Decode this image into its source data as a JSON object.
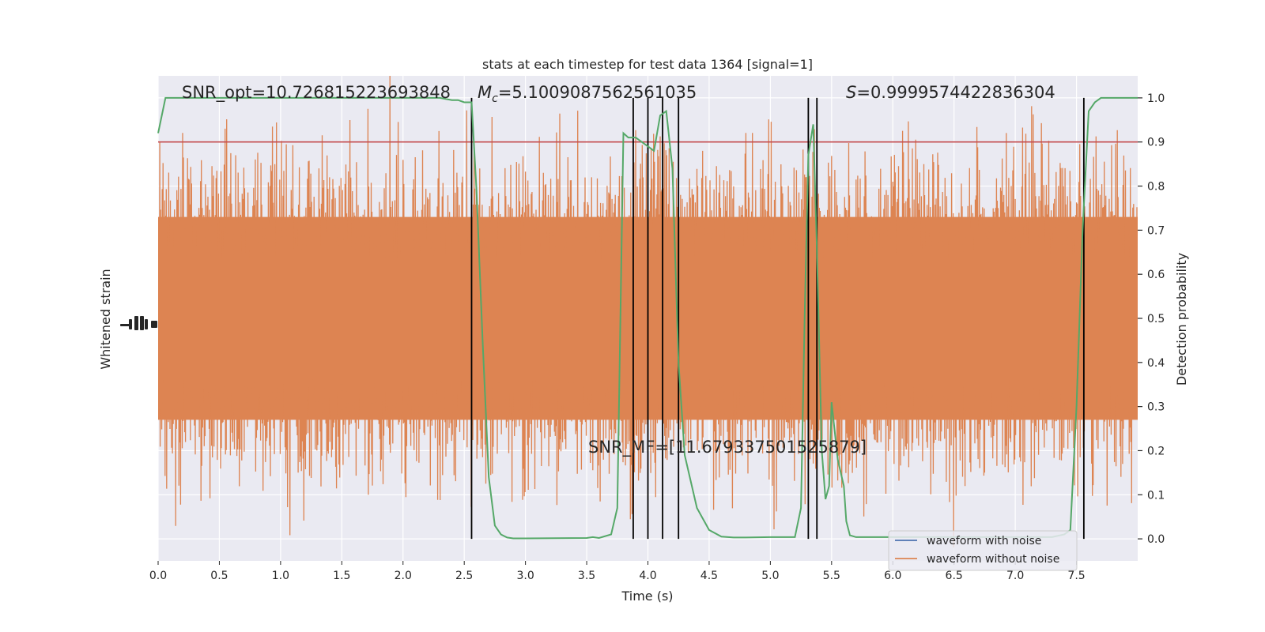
{
  "chart_data": {
    "type": "line",
    "title": "stats at each timestep for test data 1364 [signal=1]",
    "xlabel": "Time (s)",
    "ylabel_left": "Whitened strain",
    "ylabel_right": "Detection probability",
    "xlim": [
      0.0,
      8.0
    ],
    "ylim_right": [
      -0.05,
      1.05
    ],
    "x_ticks": [
      "0.0",
      "0.5",
      "1.0",
      "1.5",
      "2.0",
      "2.5",
      "3.0",
      "3.5",
      "4.0",
      "4.5",
      "5.0",
      "5.5",
      "6.0",
      "6.5",
      "7.0",
      "7.5"
    ],
    "x_tick_values": [
      0.0,
      0.5,
      1.0,
      1.5,
      2.0,
      2.5,
      3.0,
      3.5,
      4.0,
      4.5,
      5.0,
      5.5,
      6.0,
      6.5,
      7.0,
      7.5
    ],
    "y_ticks_right": [
      "0.0",
      "0.1",
      "0.2",
      "0.3",
      "0.4",
      "0.5",
      "0.6",
      "0.7",
      "0.8",
      "0.9",
      "1.0"
    ],
    "y_tick_values_right": [
      0.0,
      0.1,
      0.2,
      0.3,
      0.4,
      0.5,
      0.6,
      0.7,
      0.8,
      0.9,
      1.0
    ],
    "grid": true,
    "threshold": 0.9,
    "annotations": {
      "snr_opt": "SNR_opt=10.726815223693848",
      "mc_symbol": "M",
      "mc_sub": "c",
      "mc_value": "=5.1009087562561035",
      "s_symbol": "S",
      "s_value": "=0.9999574422836304",
      "snr_mf": "SNR_MF=[11.679337501525879]"
    },
    "vlines": [
      2.56,
      3.88,
      4.0,
      4.12,
      4.25,
      5.31,
      5.38,
      7.56
    ],
    "series": [
      {
        "name": "waveform with noise",
        "color": "#4c72b0"
      },
      {
        "name": "waveform without noise",
        "color": "#dd8452"
      },
      {
        "color": "#55a868",
        "x": [
          0.0,
          0.06,
          0.1,
          0.5,
          1.0,
          1.5,
          2.0,
          2.3,
          2.4,
          2.45,
          2.5,
          2.56,
          2.6,
          2.65,
          2.7,
          2.75,
          2.8,
          2.85,
          2.9,
          3.0,
          3.5,
          3.55,
          3.6,
          3.7,
          3.75,
          3.8,
          3.84,
          3.9,
          4.0,
          4.05,
          4.1,
          4.15,
          4.2,
          4.25,
          4.3,
          4.4,
          4.5,
          4.6,
          4.7,
          4.8,
          5.0,
          5.2,
          5.25,
          5.28,
          5.31,
          5.35,
          5.38,
          5.42,
          5.45,
          5.48,
          5.5,
          5.55,
          5.6,
          5.62,
          5.65,
          5.7,
          5.8,
          6.0,
          7.0,
          7.3,
          7.4,
          7.45,
          7.5,
          7.55,
          7.6,
          7.65,
          7.7,
          8.0
        ],
        "values": [
          0.92,
          1.0,
          1.0,
          1.0,
          1.0,
          1.0,
          1.0,
          1.0,
          0.995,
          0.995,
          0.99,
          0.99,
          0.79,
          0.45,
          0.14,
          0.03,
          0.01,
          0.003,
          0.001,
          0.001,
          0.002,
          0.004,
          0.002,
          0.01,
          0.07,
          0.92,
          0.91,
          0.91,
          0.89,
          0.88,
          0.96,
          0.97,
          0.84,
          0.4,
          0.19,
          0.07,
          0.02,
          0.005,
          0.003,
          0.003,
          0.004,
          0.004,
          0.07,
          0.5,
          0.87,
          0.94,
          0.66,
          0.2,
          0.09,
          0.12,
          0.31,
          0.18,
          0.12,
          0.04,
          0.008,
          0.004,
          0.004,
          0.004,
          0.004,
          0.004,
          0.01,
          0.02,
          0.3,
          0.7,
          0.97,
          0.99,
          1.0,
          1.0
        ]
      }
    ],
    "legend_location": "lower right"
  }
}
